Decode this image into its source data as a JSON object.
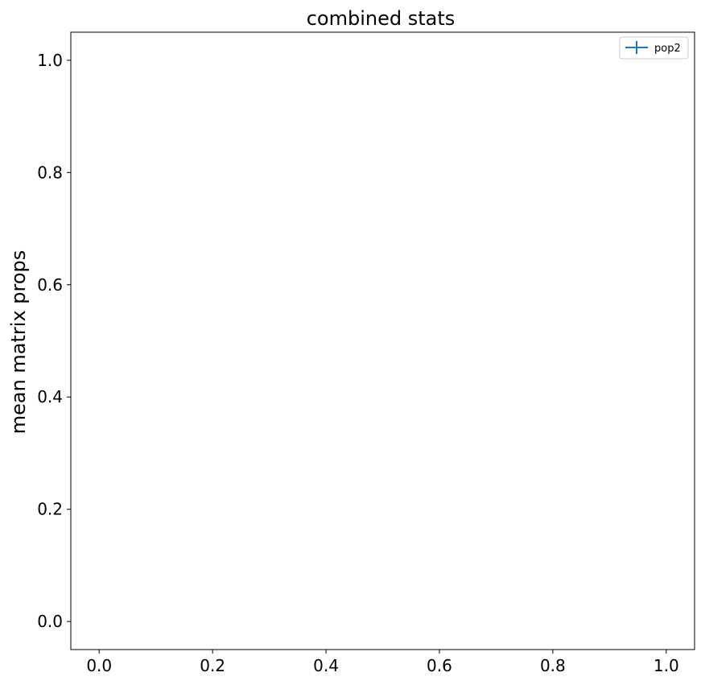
{
  "chart_data": {
    "type": "line",
    "title": "combined stats",
    "xlabel": "",
    "ylabel": "mean matrix props",
    "xlim": [
      -0.05,
      1.05
    ],
    "ylim": [
      -0.05,
      1.05
    ],
    "x_ticks": [
      "0.0",
      "0.2",
      "0.4",
      "0.6",
      "0.8",
      "1.0"
    ],
    "y_ticks": [
      "0.0",
      "0.2",
      "0.4",
      "0.6",
      "0.8",
      "1.0"
    ],
    "grid": false,
    "legend_position": "top-right",
    "series": [
      {
        "name": "pop2",
        "color": "#1f77b4",
        "marker": "errorbar",
        "points": []
      }
    ]
  }
}
